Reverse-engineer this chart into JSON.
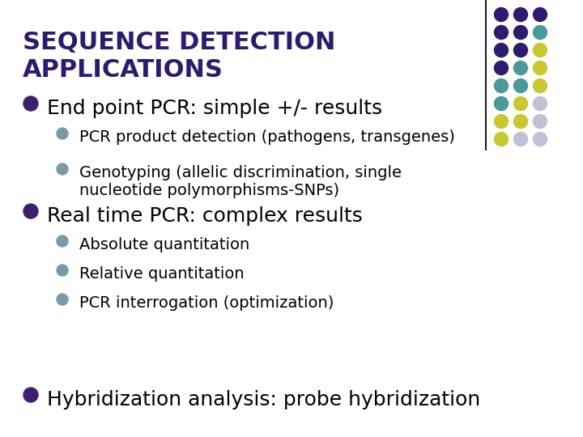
{
  "title_line1": "SEQUENCE DETECTION",
  "title_line2": "APPLICATIONS",
  "title_color": "#2E1A6E",
  "bg_color": "#FFFFFF",
  "bullet_color_main": "#3d1f6e",
  "bullet_color_sub": "#7a9aaa",
  "dot_colors": [
    [
      "#2E1A6E",
      "#2E1A6E",
      "#2E1A6E"
    ],
    [
      "#2E1A6E",
      "#2E1A6E",
      "#4a9a9a"
    ],
    [
      "#2E1A6E",
      "#2E1A6E",
      "#c8c830"
    ],
    [
      "#2E1A6E",
      "#4a9a9a",
      "#c8c830"
    ],
    [
      "#4a9a9a",
      "#4a9a9a",
      "#c8c830"
    ],
    [
      "#4a9a9a",
      "#c8c830",
      "#c0c0d8"
    ],
    [
      "#c8c830",
      "#c8c830",
      "#c0c0d8"
    ],
    [
      "#c8c830",
      "#c0c0d8",
      "#c0c0d8"
    ]
  ],
  "main_items": [
    "End point PCR: simple +/- results",
    "Real time PCR: complex results",
    "Hybridization analysis: probe hybridization"
  ],
  "sub_items_1": [
    "PCR product detection (pathogens, transgenes)",
    "Genotyping (allelic discrimination, single\nnucleotide polymorphisms-SNPs)"
  ],
  "sub_items_2": [
    "Absolute quantitation",
    "Relative quantitation",
    "PCR interrogation (optimization)"
  ],
  "title_fontsize": 22,
  "main_fontsize": 18,
  "sub_fontsize": 14
}
